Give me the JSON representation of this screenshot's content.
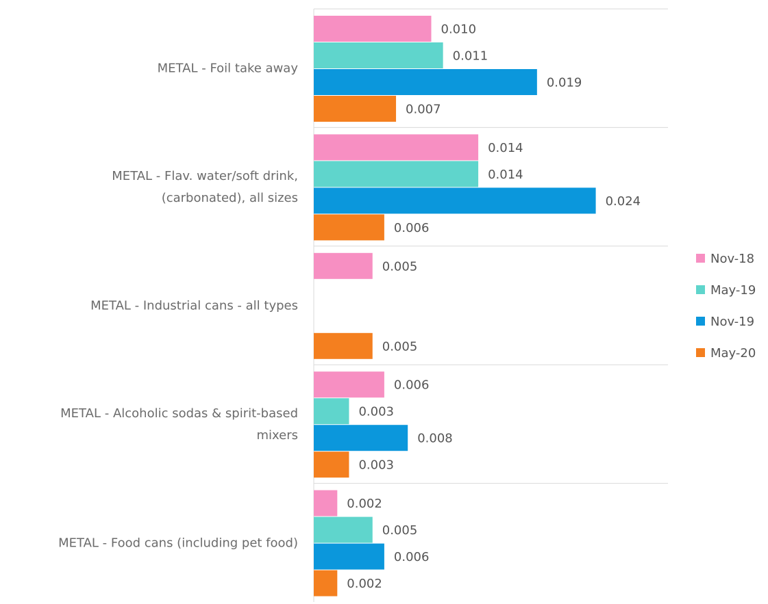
{
  "chart_data": {
    "type": "bar",
    "orientation": "horizontal",
    "categories": [
      "METAL - Foil take away",
      "METAL - Flav. water/soft drink, (carbonated), all sizes",
      "METAL - Industrial cans - all types",
      "METAL - Alcoholic sodas & spirit-based mixers",
      "METAL - Food cans (including pet food)"
    ],
    "category_lines": [
      [
        "METAL - Foil take away"
      ],
      [
        "METAL - Flav. water/soft drink,",
        "(carbonated), all sizes"
      ],
      [
        "METAL - Industrial cans - all types"
      ],
      [
        "METAL - Alcoholic sodas & spirit-based",
        "mixers"
      ],
      [
        "METAL - Food cans (including pet food)"
      ]
    ],
    "series": [
      {
        "name": "Nov-18",
        "color": "#f78fc2",
        "values": [
          0.01,
          0.014,
          0.005,
          0.006,
          0.002
        ]
      },
      {
        "name": "May-19",
        "color": "#5fd5cc",
        "values": [
          0.011,
          0.014,
          null,
          0.003,
          0.005
        ]
      },
      {
        "name": "Nov-19",
        "color": "#0b97dc",
        "values": [
          0.019,
          0.024,
          null,
          0.008,
          0.006
        ]
      },
      {
        "name": "May-20",
        "color": "#f47f1f",
        "values": [
          0.007,
          0.006,
          0.005,
          0.003,
          0.002
        ]
      }
    ],
    "value_labels": [
      [
        "0.010",
        "0.014",
        "0.005",
        "0.006",
        "0.002"
      ],
      [
        "0.011",
        "0.014",
        "",
        "0.003",
        "0.005"
      ],
      [
        "0.019",
        "0.024",
        "",
        "0.008",
        "0.006"
      ],
      [
        "0.007",
        "0.006",
        "0.005",
        "0.003",
        "0.002"
      ]
    ],
    "xlim": [
      0,
      0.03
    ],
    "grid": "horizontal separators between categories",
    "legend_position": "right"
  }
}
